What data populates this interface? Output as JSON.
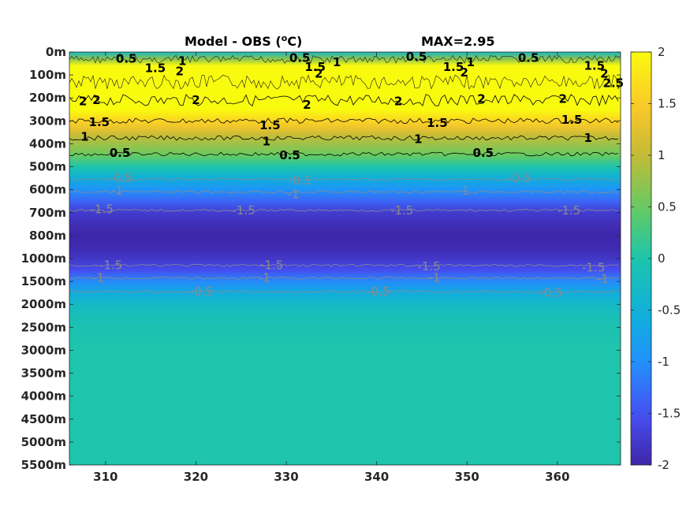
{
  "chart_data": {
    "type": "heatmap",
    "title": "Model - OBS (",
    "title_unit_super": "o",
    "title_unit_tail": "C)",
    "max_label": "MAX=2.95",
    "x_ticks": [
      "310",
      "320",
      "330",
      "340",
      "350",
      "360"
    ],
    "x_tick_values": [
      310,
      320,
      330,
      340,
      350,
      360
    ],
    "xlim": [
      306,
      367
    ],
    "y_ticks": [
      "0m",
      "100m",
      "200m",
      "300m",
      "400m",
      "500m",
      "600m",
      "700m",
      "800m",
      "1000m",
      "1500m",
      "2000m",
      "2500m",
      "3000m",
      "3500m",
      "4000m",
      "4500m",
      "5000m",
      "5500m"
    ],
    "colorbar": {
      "ticks": [
        "2",
        "1.5",
        "1",
        "0.5",
        "0",
        "-0.5",
        "-1",
        "-1.5",
        "-2"
      ],
      "tick_values": [
        2,
        1.5,
        1,
        0.5,
        0,
        -0.5,
        -1,
        -1.5,
        -2
      ],
      "range": [
        -2,
        2
      ],
      "colormap": "parula"
    },
    "depth_profile": {
      "depth_index": [
        0,
        0.3,
        0.6,
        1.0,
        1.5,
        2.0,
        2.5,
        3.0,
        3.3,
        3.6,
        4.0,
        4.5,
        5.0,
        5.5,
        6.0,
        6.5,
        7.0,
        7.5,
        8.0,
        8.5,
        9.0,
        9.5,
        10.0,
        10.5,
        11.0,
        11.5,
        12.0,
        13.0,
        18.0
      ],
      "anomaly": [
        -0.3,
        0.7,
        2.3,
        2.6,
        2.6,
        2.4,
        2.0,
        1.6,
        1.35,
        1.05,
        0.8,
        0.5,
        0.0,
        -0.55,
        -0.95,
        -1.35,
        -1.75,
        -1.9,
        -2.0,
        -1.95,
        -1.8,
        -1.55,
        -1.05,
        -0.6,
        -0.3,
        -0.15,
        -0.05,
        0.0,
        0.0
      ]
    },
    "contour_labels": {
      "positive": [
        {
          "text": "0.5",
          "x": 312.3,
          "d": 0.3
        },
        {
          "text": "1",
          "x": 318.5,
          "d": 0.4
        },
        {
          "text": "1.5",
          "x": 315.5,
          "d": 0.7
        },
        {
          "text": "2",
          "x": 318.2,
          "d": 0.85
        },
        {
          "text": "0.5",
          "x": 331.5,
          "d": 0.25
        },
        {
          "text": "1.5",
          "x": 333.2,
          "d": 0.65
        },
        {
          "text": "1",
          "x": 335.6,
          "d": 0.45
        },
        {
          "text": "2",
          "x": 333.6,
          "d": 0.95
        },
        {
          "text": "0.5",
          "x": 344.4,
          "d": 0.2
        },
        {
          "text": "1.5",
          "x": 348.5,
          "d": 0.65
        },
        {
          "text": "1",
          "x": 350.4,
          "d": 0.45
        },
        {
          "text": "2",
          "x": 349.7,
          "d": 0.9
        },
        {
          "text": "0.5",
          "x": 356.8,
          "d": 0.25
        },
        {
          "text": "1.5",
          "x": 364.1,
          "d": 0.6
        },
        {
          "text": "2",
          "x": 365.2,
          "d": 0.95
        },
        {
          "text": "2.5",
          "x": 366.2,
          "d": 1.35
        },
        {
          "text": "2",
          "x": 307.5,
          "d": 2.15
        },
        {
          "text": "2",
          "x": 309.0,
          "d": 2.1
        },
        {
          "text": "2",
          "x": 320.0,
          "d": 2.1
        },
        {
          "text": "2",
          "x": 332.3,
          "d": 2.3
        },
        {
          "text": "2",
          "x": 342.4,
          "d": 2.15
        },
        {
          "text": "2",
          "x": 351.6,
          "d": 2.05
        },
        {
          "text": "2",
          "x": 360.6,
          "d": 2.05
        },
        {
          "text": "1.5",
          "x": 309.3,
          "d": 3.05
        },
        {
          "text": "1.5",
          "x": 328.2,
          "d": 3.2
        },
        {
          "text": "1.5",
          "x": 346.7,
          "d": 3.1
        },
        {
          "text": "1.5",
          "x": 361.6,
          "d": 2.95
        },
        {
          "text": "1",
          "x": 307.7,
          "d": 3.7
        },
        {
          "text": "1",
          "x": 327.8,
          "d": 3.9
        },
        {
          "text": "1",
          "x": 344.6,
          "d": 3.8
        },
        {
          "text": "1",
          "x": 363.4,
          "d": 3.75
        },
        {
          "text": "0.5",
          "x": 311.6,
          "d": 4.4
        },
        {
          "text": "0.5",
          "x": 330.4,
          "d": 4.5
        },
        {
          "text": "0.5",
          "x": 351.8,
          "d": 4.4
        }
      ],
      "negative": [
        {
          "text": "-0.5",
          "x": 311.7,
          "d": 5.5
        },
        {
          "text": "-0.5",
          "x": 331.5,
          "d": 5.6
        },
        {
          "text": "-0.5",
          "x": 355.8,
          "d": 5.5
        },
        {
          "text": "-1",
          "x": 311.3,
          "d": 6.05
        },
        {
          "text": "-1",
          "x": 330.8,
          "d": 6.2
        },
        {
          "text": "-1",
          "x": 349.6,
          "d": 6.05
        },
        {
          "text": "-1.5",
          "x": 309.6,
          "d": 6.85
        },
        {
          "text": "-1.5",
          "x": 325.3,
          "d": 6.9
        },
        {
          "text": "-1.5",
          "x": 342.8,
          "d": 6.9
        },
        {
          "text": "-1.5",
          "x": 361.3,
          "d": 6.9
        },
        {
          "text": "-1.5",
          "x": 310.6,
          "d": 9.3
        },
        {
          "text": "-1.5",
          "x": 328.4,
          "d": 9.3
        },
        {
          "text": "-1.5",
          "x": 345.8,
          "d": 9.35
        },
        {
          "text": "-1.5",
          "x": 364.0,
          "d": 9.4
        },
        {
          "text": "-1",
          "x": 309.2,
          "d": 9.85
        },
        {
          "text": "-1",
          "x": 327.6,
          "d": 9.85
        },
        {
          "text": "-1",
          "x": 346.4,
          "d": 9.85
        },
        {
          "text": "-1",
          "x": 365.0,
          "d": 9.9
        },
        {
          "text": "-0.5",
          "x": 320.6,
          "d": 10.45
        },
        {
          "text": "-0.5",
          "x": 340.2,
          "d": 10.45
        },
        {
          "text": "-0.5",
          "x": 359.3,
          "d": 10.5
        }
      ]
    },
    "contour_lines": [
      {
        "level": 2,
        "d": 2.1,
        "wiggle": 0.25,
        "color": "#000000"
      },
      {
        "level": 1.5,
        "d": 3.0,
        "wiggle": 0.12,
        "color": "#000000"
      },
      {
        "level": 1,
        "d": 3.75,
        "wiggle": 0.1,
        "color": "#000000"
      },
      {
        "level": 0.5,
        "d": 4.45,
        "wiggle": 0.08,
        "color": "#000000"
      },
      {
        "level": -0.5,
        "d": 5.55,
        "wiggle": 0.05,
        "color": "#8c8c8c"
      },
      {
        "level": -1,
        "d": 6.1,
        "wiggle": 0.05,
        "color": "#8c8c8c"
      },
      {
        "level": -1.5,
        "d": 6.9,
        "wiggle": 0.05,
        "color": "#8c8c8c"
      },
      {
        "level": -1.5,
        "d": 9.3,
        "wiggle": 0.05,
        "color": "#8c8c8c"
      },
      {
        "level": -1,
        "d": 9.85,
        "wiggle": 0.05,
        "color": "#8c8c8c"
      },
      {
        "level": -0.5,
        "d": 10.45,
        "wiggle": 0.05,
        "color": "#8c8c8c"
      }
    ]
  }
}
